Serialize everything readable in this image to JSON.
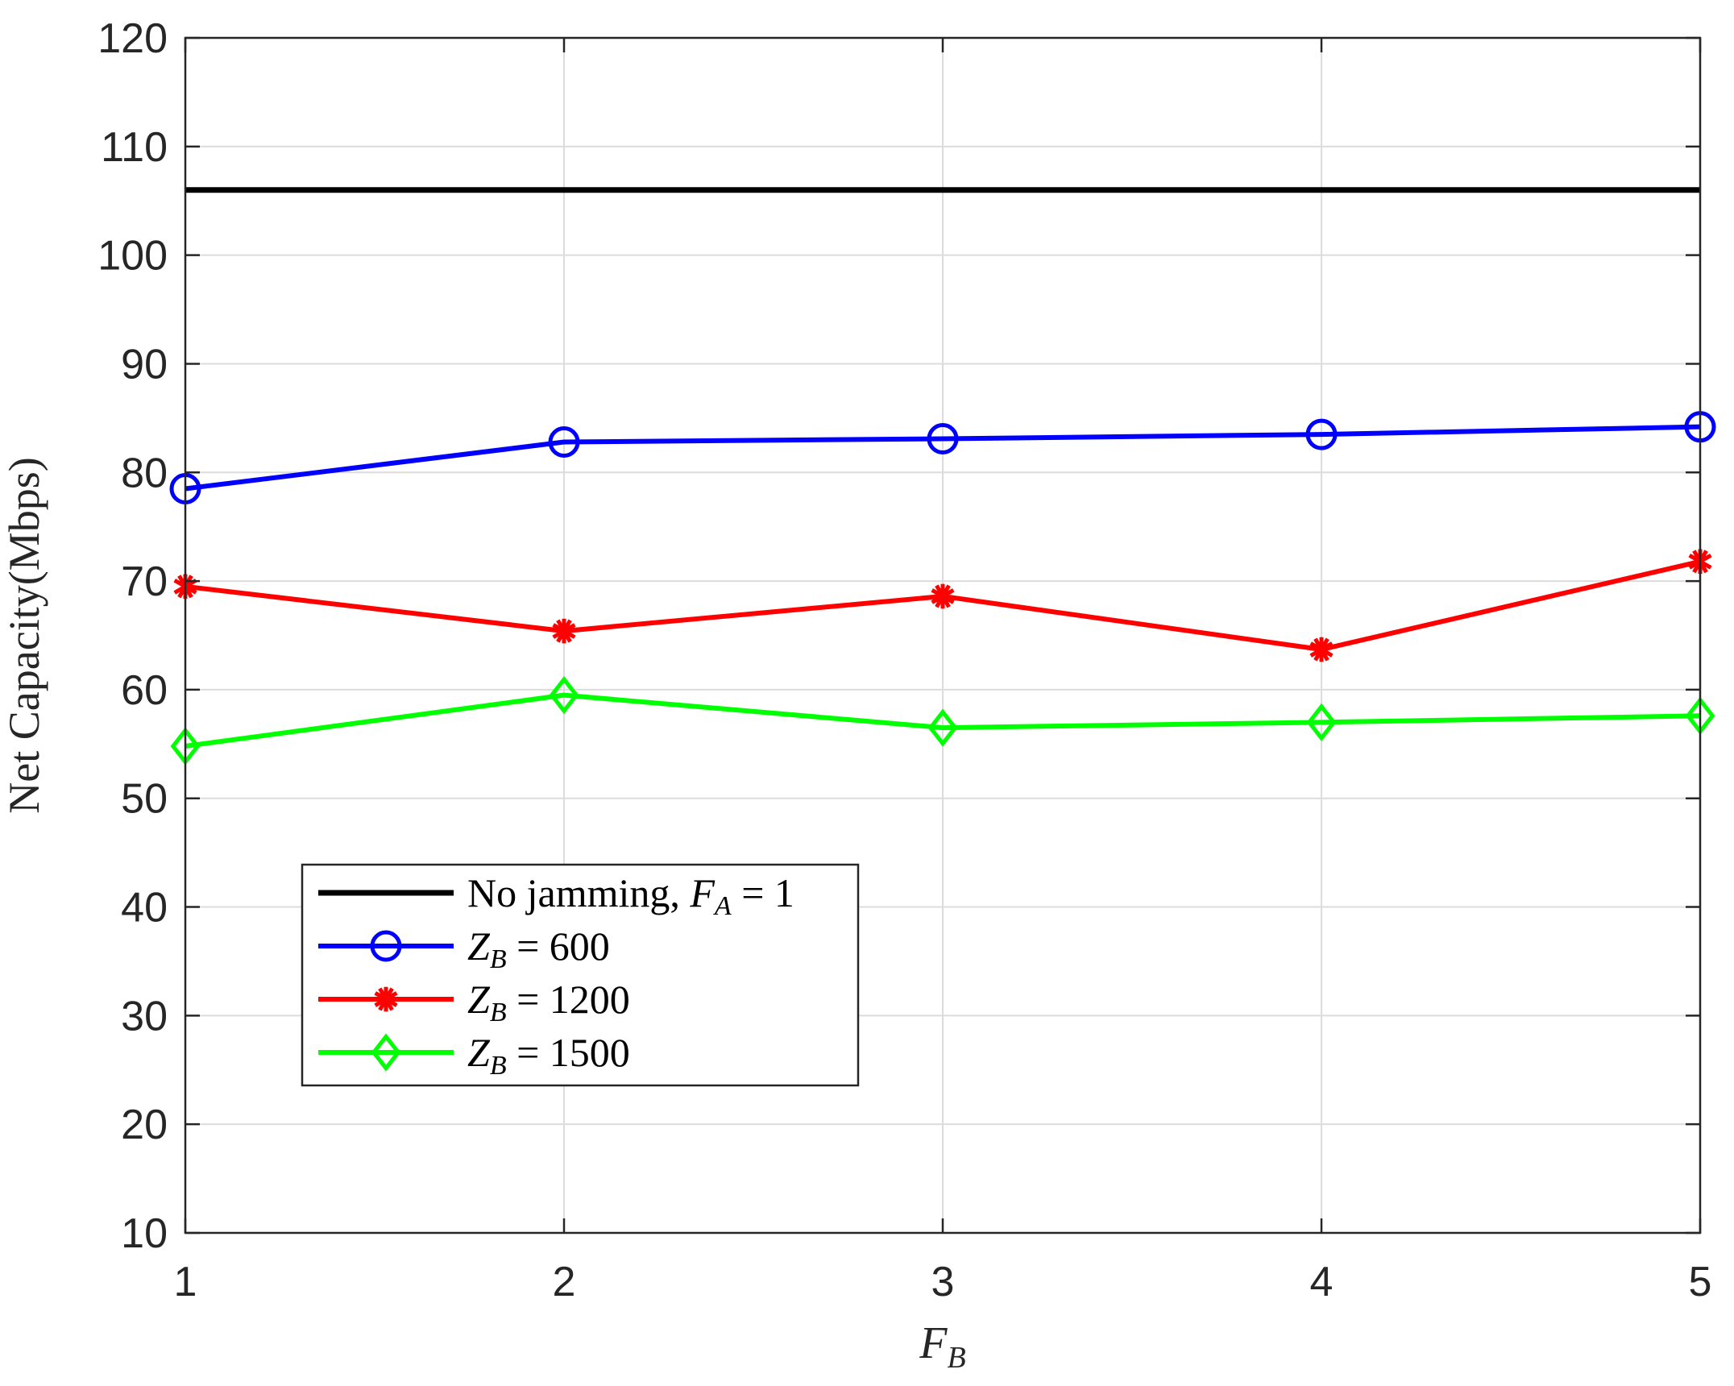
{
  "chart_data": {
    "type": "line",
    "xlabel": {
      "main": "F",
      "sub": "B"
    },
    "ylabel": "Net Capacity(Mbps)",
    "x": [
      1,
      2,
      3,
      4,
      5
    ],
    "x_ticks": [
      "1",
      "2",
      "3",
      "4",
      "5"
    ],
    "y_ticks": [
      "10",
      "20",
      "30",
      "40",
      "50",
      "60",
      "70",
      "80",
      "90",
      "100",
      "110",
      "120"
    ],
    "xlim": [
      1,
      5
    ],
    "ylim": [
      10,
      120
    ],
    "grid": true,
    "legend_position": "bottom-left",
    "series": [
      {
        "name": "No jamming, F_A = 1",
        "label_parts": {
          "text": "No jamming, ",
          "var": "F",
          "sub": "A",
          "rest": " = 1"
        },
        "color": "#000000",
        "marker": "none",
        "values": [
          106,
          106,
          106,
          106,
          106
        ]
      },
      {
        "name": "Z_B = 600",
        "label_parts": {
          "text": "",
          "var": "Z",
          "sub": "B",
          "rest": " = 600"
        },
        "color": "#0000ff",
        "marker": "circle",
        "values": [
          78.5,
          82.8,
          83.1,
          83.5,
          84.2
        ]
      },
      {
        "name": "Z_B = 1200",
        "label_parts": {
          "text": "",
          "var": "Z",
          "sub": "B",
          "rest": " = 1200"
        },
        "color": "#ff0000",
        "marker": "asterisk",
        "values": [
          69.5,
          65.4,
          68.6,
          63.7,
          71.8
        ]
      },
      {
        "name": "Z_B = 1500",
        "label_parts": {
          "text": "",
          "var": "Z",
          "sub": "B",
          "rest": " = 1500"
        },
        "color": "#00ff00",
        "marker": "diamond",
        "values": [
          54.8,
          59.5,
          56.5,
          57.0,
          57.6
        ]
      }
    ]
  }
}
